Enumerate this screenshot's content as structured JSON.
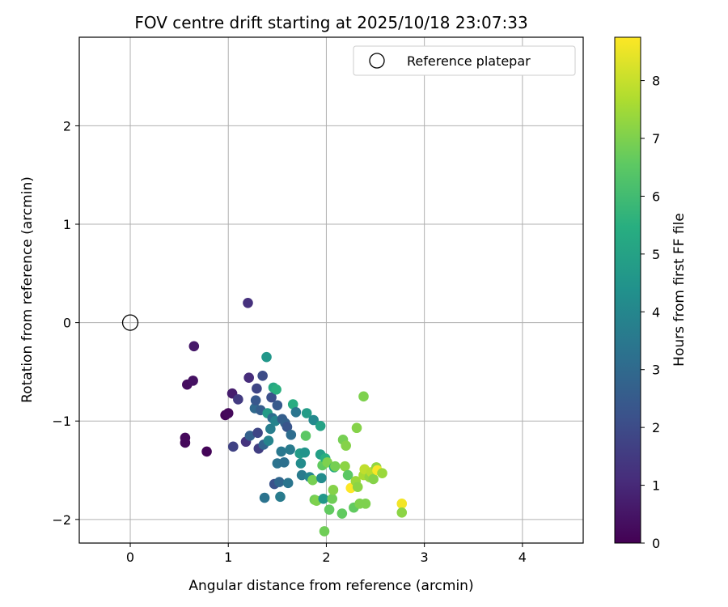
{
  "chart_data": {
    "type": "scatter",
    "title": "FOV centre drift starting at 2025/10/18 23:07:33",
    "xlabel": "Angular distance from reference (arcmin)",
    "ylabel": "Rotation from reference (arcmin)",
    "xlim": [
      -0.52,
      4.62
    ],
    "ylim": [
      -2.24,
      2.9
    ],
    "xticks": [
      0,
      1,
      2,
      3,
      4
    ],
    "yticks": [
      -2,
      -1,
      0,
      1,
      2
    ],
    "grid": true,
    "legend": {
      "position": "top-right",
      "entries": [
        {
          "label": "Reference platepar",
          "marker": "open-circle"
        }
      ]
    },
    "reference_point": {
      "x": 0,
      "y": 0,
      "label": "Reference platepar"
    },
    "colorbar": {
      "label": "Hours from first FF file",
      "range": [
        0,
        8.75
      ],
      "ticks": [
        0,
        1,
        2,
        3,
        4,
        5,
        6,
        7,
        8
      ],
      "colormap": "viridis"
    },
    "points": [
      {
        "x": 0.56,
        "y": -1.17,
        "c": 0.2
      },
      {
        "x": 0.56,
        "y": -1.22,
        "c": 0.2
      },
      {
        "x": 0.58,
        "y": -0.63,
        "c": 0.3
      },
      {
        "x": 0.64,
        "y": -0.59,
        "c": 0.4
      },
      {
        "x": 0.65,
        "y": -0.24,
        "c": 0.6
      },
      {
        "x": 0.78,
        "y": -1.31,
        "c": 0.1
      },
      {
        "x": 0.97,
        "y": -0.94,
        "c": 0.1
      },
      {
        "x": 1.0,
        "y": -0.92,
        "c": 0.2
      },
      {
        "x": 1.04,
        "y": -0.72,
        "c": 0.7
      },
      {
        "x": 1.05,
        "y": -1.26,
        "c": 1.7
      },
      {
        "x": 1.1,
        "y": -0.78,
        "c": 1.5
      },
      {
        "x": 1.18,
        "y": -1.21,
        "c": 1.3
      },
      {
        "x": 1.2,
        "y": 0.2,
        "c": 1.2
      },
      {
        "x": 1.21,
        "y": -0.56,
        "c": 1.1
      },
      {
        "x": 1.22,
        "y": -1.15,
        "c": 2.7
      },
      {
        "x": 1.27,
        "y": -0.87,
        "c": 3.0
      },
      {
        "x": 1.28,
        "y": -0.79,
        "c": 2.4
      },
      {
        "x": 1.29,
        "y": -0.67,
        "c": 1.8
      },
      {
        "x": 1.3,
        "y": -1.12,
        "c": 1.8
      },
      {
        "x": 1.31,
        "y": -1.28,
        "c": 1.6
      },
      {
        "x": 1.33,
        "y": -0.89,
        "c": 2.6
      },
      {
        "x": 1.35,
        "y": -0.54,
        "c": 2.0
      },
      {
        "x": 1.36,
        "y": -1.24,
        "c": 2.8
      },
      {
        "x": 1.37,
        "y": -1.78,
        "c": 3.3
      },
      {
        "x": 1.39,
        "y": -0.35,
        "c": 4.6
      },
      {
        "x": 1.4,
        "y": -0.92,
        "c": 4.8
      },
      {
        "x": 1.41,
        "y": -1.2,
        "c": 3.9
      },
      {
        "x": 1.43,
        "y": -1.08,
        "c": 3.7
      },
      {
        "x": 1.44,
        "y": -0.76,
        "c": 2.1
      },
      {
        "x": 1.45,
        "y": -0.97,
        "c": 3.1
      },
      {
        "x": 1.46,
        "y": -0.66,
        "c": 5.2
      },
      {
        "x": 1.47,
        "y": -1.64,
        "c": 2.2
      },
      {
        "x": 1.48,
        "y": -1.0,
        "c": 3.9
      },
      {
        "x": 1.49,
        "y": -0.68,
        "c": 5.5
      },
      {
        "x": 1.5,
        "y": -1.43,
        "c": 3.3
      },
      {
        "x": 1.5,
        "y": -0.84,
        "c": 2.5
      },
      {
        "x": 1.52,
        "y": -1.62,
        "c": 2.9
      },
      {
        "x": 1.53,
        "y": -1.77,
        "c": 3.6
      },
      {
        "x": 1.54,
        "y": -1.31,
        "c": 3.5
      },
      {
        "x": 1.55,
        "y": -0.98,
        "c": 2.6
      },
      {
        "x": 1.57,
        "y": -1.42,
        "c": 3.2
      },
      {
        "x": 1.58,
        "y": -1.02,
        "c": 2.7
      },
      {
        "x": 1.6,
        "y": -1.06,
        "c": 2.3
      },
      {
        "x": 1.61,
        "y": -1.63,
        "c": 3.4
      },
      {
        "x": 1.63,
        "y": -1.29,
        "c": 3.6
      },
      {
        "x": 1.64,
        "y": -1.14,
        "c": 3.1
      },
      {
        "x": 1.66,
        "y": -0.83,
        "c": 5.4
      },
      {
        "x": 1.69,
        "y": -0.91,
        "c": 3.4
      },
      {
        "x": 1.73,
        "y": -1.33,
        "c": 4.8
      },
      {
        "x": 1.74,
        "y": -1.43,
        "c": 4.2
      },
      {
        "x": 1.75,
        "y": -1.55,
        "c": 3.6
      },
      {
        "x": 1.78,
        "y": -1.32,
        "c": 4.5
      },
      {
        "x": 1.79,
        "y": -1.15,
        "c": 6.5
      },
      {
        "x": 1.8,
        "y": -0.92,
        "c": 4.8
      },
      {
        "x": 1.83,
        "y": -1.57,
        "c": 4.0
      },
      {
        "x": 1.86,
        "y": -1.6,
        "c": 6.9
      },
      {
        "x": 1.87,
        "y": -0.99,
        "c": 4.1
      },
      {
        "x": 1.88,
        "y": -1.8,
        "c": 6.8
      },
      {
        "x": 1.9,
        "y": -1.81,
        "c": 7.0
      },
      {
        "x": 1.94,
        "y": -1.34,
        "c": 4.9
      },
      {
        "x": 1.94,
        "y": -1.05,
        "c": 5.0
      },
      {
        "x": 1.95,
        "y": -1.58,
        "c": 4.2
      },
      {
        "x": 1.96,
        "y": -1.45,
        "c": 6.6
      },
      {
        "x": 1.97,
        "y": -1.79,
        "c": 4.6
      },
      {
        "x": 1.98,
        "y": -2.12,
        "c": 6.8
      },
      {
        "x": 1.99,
        "y": -1.38,
        "c": 5.5
      },
      {
        "x": 2.01,
        "y": -1.42,
        "c": 7.0
      },
      {
        "x": 2.03,
        "y": -1.9,
        "c": 6.6
      },
      {
        "x": 2.06,
        "y": -1.79,
        "c": 6.8
      },
      {
        "x": 2.07,
        "y": -1.7,
        "c": 7.1
      },
      {
        "x": 2.08,
        "y": -1.47,
        "c": 5.3
      },
      {
        "x": 2.09,
        "y": -1.46,
        "c": 6.9
      },
      {
        "x": 2.16,
        "y": -1.94,
        "c": 6.6
      },
      {
        "x": 2.17,
        "y": -1.19,
        "c": 6.9
      },
      {
        "x": 2.19,
        "y": -1.46,
        "c": 7.2
      },
      {
        "x": 2.2,
        "y": -1.25,
        "c": 7.1
      },
      {
        "x": 2.22,
        "y": -1.55,
        "c": 6.5
      },
      {
        "x": 2.25,
        "y": -1.68,
        "c": 8.8
      },
      {
        "x": 2.28,
        "y": -1.88,
        "c": 6.6
      },
      {
        "x": 2.3,
        "y": -1.61,
        "c": 7.4
      },
      {
        "x": 2.31,
        "y": -1.07,
        "c": 7.1
      },
      {
        "x": 2.32,
        "y": -1.67,
        "c": 7.2
      },
      {
        "x": 2.34,
        "y": -1.84,
        "c": 7.0
      },
      {
        "x": 2.38,
        "y": -0.75,
        "c": 7.0
      },
      {
        "x": 2.38,
        "y": -1.55,
        "c": 7.6
      },
      {
        "x": 2.39,
        "y": -1.49,
        "c": 7.9
      },
      {
        "x": 2.4,
        "y": -1.84,
        "c": 7.0
      },
      {
        "x": 2.44,
        "y": -1.57,
        "c": 7.3
      },
      {
        "x": 2.46,
        "y": -1.52,
        "c": 7.8
      },
      {
        "x": 2.48,
        "y": -1.59,
        "c": 7.1
      },
      {
        "x": 2.51,
        "y": -1.47,
        "c": 7.3
      },
      {
        "x": 2.52,
        "y": -1.5,
        "c": 8.7
      },
      {
        "x": 2.57,
        "y": -1.53,
        "c": 7.4
      },
      {
        "x": 2.77,
        "y": -1.84,
        "c": 8.6
      },
      {
        "x": 2.77,
        "y": -1.93,
        "c": 7.2
      }
    ]
  }
}
